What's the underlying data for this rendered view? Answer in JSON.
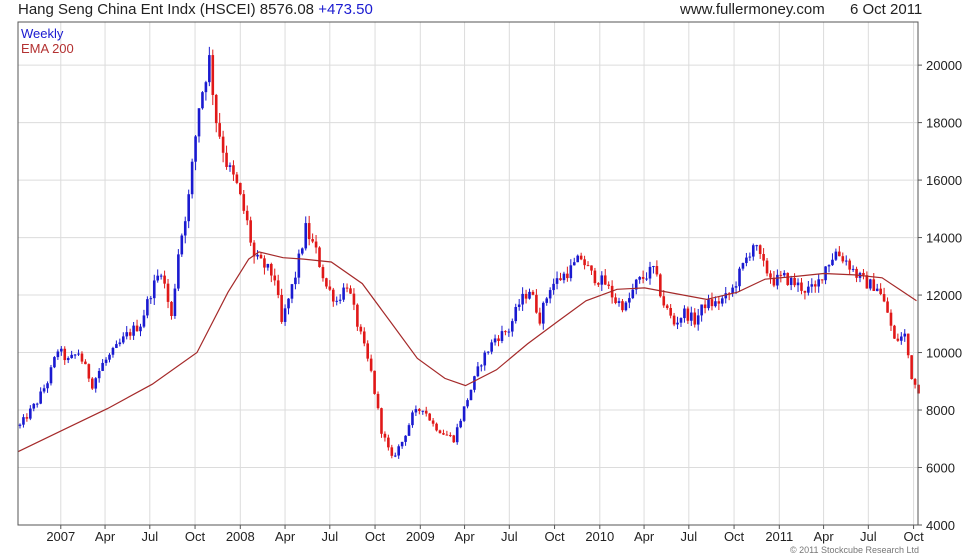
{
  "header": {
    "title": "Hang Seng China Ent Indx (HSCEI) 8576.08",
    "change": "+473.50",
    "source": "www.fullermoney.com",
    "date": "6 Oct 2011"
  },
  "legend": {
    "weekly": "Weekly",
    "ema": "EMA 200"
  },
  "copyright": "© 2011 Stockcube Research Ltd",
  "colors": {
    "up": "#1a1ad0",
    "down": "#e01818",
    "ema": "#a52a2a",
    "grid": "#dcdcdc",
    "frame": "#555555"
  },
  "chart_data": {
    "type": "candlestick",
    "title": "Hang Seng China Ent Indx (HSCEI)",
    "xlabel": "",
    "ylabel": "",
    "ylim": [
      4000,
      21500
    ],
    "yticks": [
      4000,
      6000,
      8000,
      10000,
      12000,
      14000,
      16000,
      18000,
      20000
    ],
    "xticks": [
      {
        "label": "2007",
        "date": "2007-01-01"
      },
      {
        "label": "Apr",
        "date": "2007-04-01"
      },
      {
        "label": "Jul",
        "date": "2007-07-01"
      },
      {
        "label": "Oct",
        "date": "2007-10-01"
      },
      {
        "label": "2008",
        "date": "2008-01-01"
      },
      {
        "label": "Apr",
        "date": "2008-04-01"
      },
      {
        "label": "Jul",
        "date": "2008-07-01"
      },
      {
        "label": "Oct",
        "date": "2008-10-01"
      },
      {
        "label": "2009",
        "date": "2009-01-01"
      },
      {
        "label": "Apr",
        "date": "2009-04-01"
      },
      {
        "label": "Jul",
        "date": "2009-07-01"
      },
      {
        "label": "Oct",
        "date": "2009-10-01"
      },
      {
        "label": "2010",
        "date": "2010-01-01"
      },
      {
        "label": "Apr",
        "date": "2010-04-01"
      },
      {
        "label": "Jul",
        "date": "2010-07-01"
      },
      {
        "label": "Oct",
        "date": "2010-10-01"
      },
      {
        "label": "2011",
        "date": "2011-01-01"
      },
      {
        "label": "Apr",
        "date": "2011-04-01"
      },
      {
        "label": "Jul",
        "date": "2011-07-01"
      },
      {
        "label": "Oct",
        "date": "2011-10-01"
      }
    ],
    "xlim": [
      "2006-10-06",
      "2011-10-10"
    ],
    "grid": true,
    "legend": "top-left",
    "price_path": [
      [
        "2006-10-06",
        7450
      ],
      [
        "2006-11-10",
        8300
      ],
      [
        "2006-12-01",
        9000
      ],
      [
        "2006-12-22",
        10100
      ],
      [
        "2007-01-12",
        9700
      ],
      [
        "2007-02-02",
        10000
      ],
      [
        "2007-03-02",
        8900
      ],
      [
        "2007-03-23",
        9600
      ],
      [
        "2007-04-13",
        10000
      ],
      [
        "2007-05-11",
        10600
      ],
      [
        "2007-06-08",
        11000
      ],
      [
        "2007-06-29",
        12100
      ],
      [
        "2007-07-20",
        12900
      ],
      [
        "2007-08-10",
        11200
      ],
      [
        "2007-08-24",
        13500
      ],
      [
        "2007-09-14",
        15400
      ],
      [
        "2007-10-05",
        18600
      ],
      [
        "2007-10-26",
        20200
      ],
      [
        "2007-11-09",
        18100
      ],
      [
        "2007-11-30",
        16600
      ],
      [
        "2007-12-21",
        15800
      ],
      [
        "2008-01-11",
        14500
      ],
      [
        "2008-01-25",
        13300
      ],
      [
        "2008-02-15",
        13000
      ],
      [
        "2008-03-07",
        12600
      ],
      [
        "2008-03-21",
        11000
      ],
      [
        "2008-04-18",
        12700
      ],
      [
        "2008-05-09",
        14300
      ],
      [
        "2008-05-30",
        13500
      ],
      [
        "2008-06-20",
        12300
      ],
      [
        "2008-07-11",
        11800
      ],
      [
        "2008-08-01",
        12400
      ],
      [
        "2008-08-22",
        11000
      ],
      [
        "2008-09-19",
        9300
      ],
      [
        "2008-10-10",
        7300
      ],
      [
        "2008-10-31",
        6300
      ],
      [
        "2008-11-21",
        6900
      ],
      [
        "2008-12-12",
        7800
      ],
      [
        "2009-01-02",
        8100
      ],
      [
        "2009-01-23",
        7500
      ],
      [
        "2009-02-13",
        7200
      ],
      [
        "2009-03-06",
        7000
      ],
      [
        "2009-04-03",
        8400
      ],
      [
        "2009-05-01",
        9700
      ],
      [
        "2009-05-29",
        10500
      ],
      [
        "2009-06-26",
        10800
      ],
      [
        "2009-07-17",
        11700
      ],
      [
        "2009-08-07",
        12200
      ],
      [
        "2009-08-28",
        11200
      ],
      [
        "2009-09-18",
        12300
      ],
      [
        "2009-10-09",
        12600
      ],
      [
        "2009-10-30",
        12900
      ],
      [
        "2009-11-20",
        13300
      ],
      [
        "2009-12-11",
        12700
      ],
      [
        "2010-01-08",
        12400
      ],
      [
        "2010-01-29",
        11800
      ],
      [
        "2010-02-19",
        11600
      ],
      [
        "2010-03-12",
        12400
      ],
      [
        "2010-04-02",
        12700
      ],
      [
        "2010-04-16",
        12900
      ],
      [
        "2010-05-07",
        11700
      ],
      [
        "2010-05-28",
        11000
      ],
      [
        "2010-06-18",
        11400
      ],
      [
        "2010-07-09",
        11100
      ],
      [
        "2010-07-30",
        11700
      ],
      [
        "2010-08-20",
        11700
      ],
      [
        "2010-09-10",
        11900
      ],
      [
        "2010-09-24",
        12200
      ],
      [
        "2010-10-15",
        13000
      ],
      [
        "2010-11-05",
        13800
      ],
      [
        "2010-11-26",
        13000
      ],
      [
        "2010-12-17",
        12500
      ],
      [
        "2011-01-07",
        12600
      ],
      [
        "2011-01-28",
        12400
      ],
      [
        "2011-02-18",
        12200
      ],
      [
        "2011-03-11",
        12200
      ],
      [
        "2011-04-01",
        13000
      ],
      [
        "2011-04-22",
        13500
      ],
      [
        "2011-05-13",
        13200
      ],
      [
        "2011-06-03",
        12700
      ],
      [
        "2011-06-24",
        12400
      ],
      [
        "2011-07-15",
        12300
      ],
      [
        "2011-08-05",
        11400
      ],
      [
        "2011-08-19",
        10400
      ],
      [
        "2011-09-09",
        10600
      ],
      [
        "2011-09-23",
        9200
      ],
      [
        "2011-10-07",
        8576
      ]
    ],
    "ema_200": [
      [
        "2006-10-06",
        6550
      ],
      [
        "2007-01-05",
        7300
      ],
      [
        "2007-04-06",
        8050
      ],
      [
        "2007-07-06",
        8900
      ],
      [
        "2007-10-05",
        10000
      ],
      [
        "2007-12-07",
        12100
      ],
      [
        "2008-01-18",
        13250
      ],
      [
        "2008-02-08",
        13500
      ],
      [
        "2008-03-28",
        13300
      ],
      [
        "2008-05-09",
        13250
      ],
      [
        "2008-07-04",
        13150
      ],
      [
        "2008-09-05",
        12400
      ],
      [
        "2008-10-31",
        11100
      ],
      [
        "2008-12-26",
        9800
      ],
      [
        "2009-02-20",
        9100
      ],
      [
        "2009-04-03",
        8850
      ],
      [
        "2009-06-05",
        9400
      ],
      [
        "2009-08-07",
        10300
      ],
      [
        "2009-10-09",
        11100
      ],
      [
        "2009-12-04",
        11800
      ],
      [
        "2010-02-05",
        12200
      ],
      [
        "2010-04-02",
        12250
      ],
      [
        "2010-06-04",
        12050
      ],
      [
        "2010-08-06",
        11850
      ],
      [
        "2010-10-08",
        12100
      ],
      [
        "2010-12-03",
        12550
      ],
      [
        "2011-02-04",
        12650
      ],
      [
        "2011-04-01",
        12750
      ],
      [
        "2011-06-03",
        12700
      ],
      [
        "2011-07-29",
        12600
      ],
      [
        "2011-09-02",
        12200
      ],
      [
        "2011-10-07",
        11800
      ]
    ]
  }
}
